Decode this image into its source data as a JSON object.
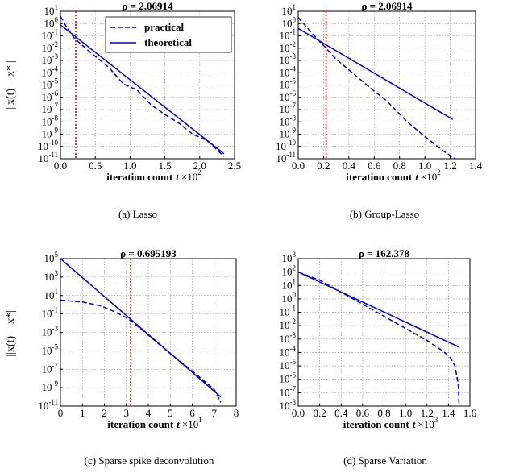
{
  "colors": {
    "series": "#0000cc",
    "marker": "#dd0000",
    "grid": "#888888"
  },
  "legend": {
    "labels": [
      "practical",
      "theoretical"
    ]
  },
  "chart_data": [
    {
      "type": "line",
      "caption": "(a)  Lasso",
      "title": "ρ = 2.06914",
      "xlabel": "iteration count",
      "x_var": "t",
      "x_mult": "×10",
      "x_exp": "2",
      "ylabel": "||x(t) − x*||",
      "xlim": [
        0,
        2.5
      ],
      "xticks": [
        "0.0",
        "0.5",
        "1.0",
        "1.5",
        "2.0",
        "2.5"
      ],
      "xtick_values": [
        0,
        0.5,
        1,
        1.5,
        2,
        2.5
      ],
      "ylim_exp": [
        -11,
        1
      ],
      "ytick_exps": [
        1,
        0,
        -1,
        -2,
        -3,
        -4,
        -5,
        -6,
        -7,
        -8,
        -9,
        -10,
        -11
      ],
      "vline_x": 0.22,
      "legend_position": "top-right",
      "series": [
        {
          "name": "practical",
          "style": "dashed",
          "x": [
            0,
            0.1,
            0.2,
            0.4,
            0.7,
            0.9,
            1.1,
            1.3,
            1.5,
            1.7,
            1.9,
            2.1,
            2.35
          ],
          "y_exp": [
            0.6,
            -0.4,
            -1.2,
            -2.2,
            -3.6,
            -4.9,
            -5.4,
            -6.6,
            -7.4,
            -8.1,
            -9.0,
            -9.5,
            -10.8
          ]
        },
        {
          "name": "theoretical",
          "style": "solid",
          "x": [
            0,
            2.35
          ],
          "y_exp": [
            -0.1,
            -10.6
          ]
        }
      ]
    },
    {
      "type": "line",
      "caption": "(b)  Group-Lasso",
      "title": "ρ = 2.06914",
      "xlabel": "iteration count",
      "x_var": "t",
      "x_mult": "×10",
      "x_exp": "2",
      "ylabel": "",
      "xlim": [
        0,
        1.4
      ],
      "xticks": [
        "0.0",
        "0.2",
        "0.4",
        "0.6",
        "0.8",
        "1.0",
        "1.2",
        "1.4"
      ],
      "xtick_values": [
        0,
        0.2,
        0.4,
        0.6,
        0.8,
        1,
        1.2,
        1.4
      ],
      "ylim_exp": [
        -11,
        1
      ],
      "ytick_exps": [
        1,
        0,
        -1,
        -2,
        -3,
        -4,
        -5,
        -6,
        -7,
        -8,
        -9,
        -10,
        -11
      ],
      "vline_x": 0.22,
      "series": [
        {
          "name": "practical",
          "style": "dashed",
          "x": [
            0,
            0.1,
            0.22,
            0.3,
            0.45,
            0.6,
            0.7,
            0.85,
            1.0,
            1.15,
            1.24
          ],
          "y_exp": [
            0.5,
            -0.7,
            -2.0,
            -2.9,
            -4.2,
            -5.5,
            -6.3,
            -7.9,
            -9.2,
            -10.4,
            -11.0
          ]
        },
        {
          "name": "theoretical",
          "style": "solid",
          "x": [
            0,
            1.22
          ],
          "y_exp": [
            -0.4,
            -7.8
          ]
        }
      ]
    },
    {
      "type": "line",
      "caption": "(c)  Sparse spike deconvolution",
      "title": "ρ = 0.695193",
      "xlabel": "iteration count",
      "x_var": "t",
      "x_mult": "×10",
      "x_exp": "1",
      "ylabel": "||x(t) − x*||",
      "xlim": [
        0,
        8
      ],
      "xticks": [
        "0",
        "1",
        "2",
        "3",
        "4",
        "5",
        "6",
        "7",
        "8"
      ],
      "xtick_values": [
        0,
        1,
        2,
        3,
        4,
        5,
        6,
        7,
        8
      ],
      "ylim_exp": [
        -11,
        5
      ],
      "ytick_exps": [
        5,
        3,
        1,
        -1,
        -3,
        -5,
        -7,
        -9,
        -11
      ],
      "vline_x": 3.2,
      "series": [
        {
          "name": "practical",
          "style": "dashed",
          "x": [
            0,
            1,
            1.8,
            2.5,
            3.0,
            3.3,
            4.0,
            5.0,
            6.0,
            7.0,
            7.3
          ],
          "y_exp": [
            0.5,
            0.3,
            -0.1,
            -0.8,
            -1.4,
            -1.9,
            -3.3,
            -5.3,
            -7.2,
            -9.2,
            -10.6
          ]
        },
        {
          "name": "theoretical",
          "style": "solid",
          "x": [
            0,
            7.3
          ],
          "y_exp": [
            5.0,
            -10.0
          ]
        }
      ]
    },
    {
      "type": "line",
      "caption": "(d)  Sparse Variation",
      "title": "ρ = 162.378",
      "xlabel": "iteration count",
      "x_var": "t",
      "x_mult": "×10",
      "x_exp": "3",
      "ylabel": "",
      "xlim": [
        0,
        1.6
      ],
      "xticks": [
        "0.0",
        "0.2",
        "0.4",
        "0.6",
        "0.8",
        "1.0",
        "1.2",
        "1.4",
        "1.6"
      ],
      "xtick_values": [
        0,
        0.2,
        0.4,
        0.6,
        0.8,
        1,
        1.2,
        1.4,
        1.6
      ],
      "ylim_exp": [
        -8,
        3
      ],
      "ytick_exps": [
        3,
        2,
        1,
        0,
        -1,
        -2,
        -3,
        -4,
        -5,
        -6,
        -7,
        -8
      ],
      "vline_x": null,
      "series": [
        {
          "name": "practical",
          "style": "dashed",
          "x": [
            0,
            0.2,
            0.4,
            0.6,
            0.8,
            1.0,
            1.2,
            1.35,
            1.42,
            1.46,
            1.49,
            1.5
          ],
          "y_exp": [
            2.0,
            1.4,
            0.5,
            -0.4,
            -1.3,
            -2.2,
            -3.1,
            -3.9,
            -4.4,
            -5.0,
            -6.3,
            -8.0
          ]
        },
        {
          "name": "theoretical",
          "style": "solid",
          "x": [
            0,
            1.5
          ],
          "y_exp": [
            2.0,
            -3.6
          ]
        }
      ]
    }
  ]
}
